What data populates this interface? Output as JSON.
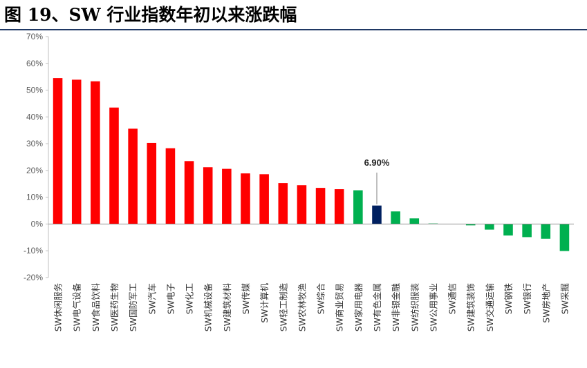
{
  "figure": {
    "title": "图 19、SW 行业指数年初以来涨跌幅"
  },
  "chart_data": {
    "type": "bar",
    "title": "",
    "xlabel": "",
    "ylabel": "",
    "ylim": [
      -20,
      70
    ],
    "yticks": [
      -20,
      -10,
      0,
      10,
      20,
      30,
      40,
      50,
      60,
      70
    ],
    "ytick_labels": [
      "-20%",
      "-10%",
      "0%",
      "10%",
      "20%",
      "30%",
      "40%",
      "50%",
      "60%",
      "70%"
    ],
    "grid": false,
    "legend": "none",
    "categories": [
      "SW休闲服务",
      "SW电气设备",
      "SW食品饮料",
      "SW医药生物",
      "SW国防军工",
      "SW汽车",
      "SW电子",
      "SW化工",
      "SW机械设备",
      "SW建筑材料",
      "SW传媒",
      "SW计算机",
      "SW轻工制造",
      "SW农林牧渔",
      "SW综合",
      "SW商业贸易",
      "SW家用电器",
      "SW有色金属",
      "SW非银金融",
      "SW纺织服装",
      "SW公用事业",
      "SW通信",
      "SW建筑装饰",
      "SW交通运输",
      "SW钢铁",
      "SW银行",
      "SW房地产",
      "SW采掘"
    ],
    "values": [
      54.5,
      53.9,
      53.3,
      43.5,
      35.6,
      30.3,
      28.3,
      23.5,
      21.2,
      20.6,
      18.9,
      18.6,
      15.3,
      14.5,
      13.5,
      13.0,
      12.6,
      6.9,
      4.7,
      2.1,
      0.2,
      0.1,
      -0.5,
      -2.1,
      -4.3,
      -4.9,
      -5.5,
      -10.1
    ],
    "bar_colors": [
      "#ff0000",
      "#ff0000",
      "#ff0000",
      "#ff0000",
      "#ff0000",
      "#ff0000",
      "#ff0000",
      "#ff0000",
      "#ff0000",
      "#ff0000",
      "#ff0000",
      "#ff0000",
      "#ff0000",
      "#ff0000",
      "#ff0000",
      "#ff0000",
      "#00b050",
      "#002060",
      "#00b050",
      "#00b050",
      "#00b050",
      "#00b050",
      "#00b050",
      "#00b050",
      "#00b050",
      "#00b050",
      "#00b050",
      "#00b050"
    ],
    "annotation": {
      "category": "SW有色金属",
      "text": "6.90%"
    }
  }
}
